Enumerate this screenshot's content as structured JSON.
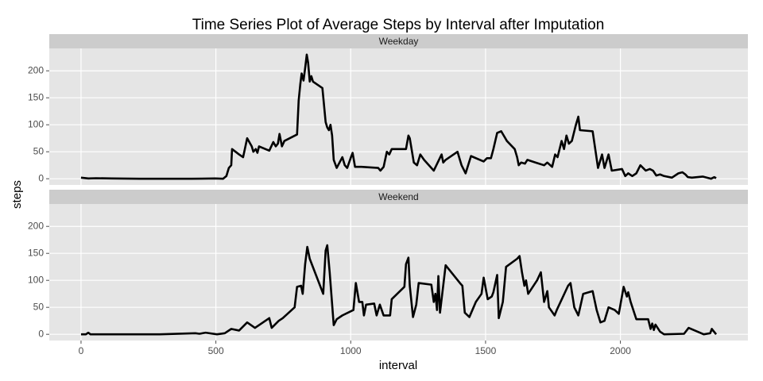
{
  "title": "Time Series Plot of Average Steps by Interval after Imputation",
  "x_label": "interval",
  "y_label": "steps",
  "chart_data": [
    {
      "type": "line",
      "strip": "Weekday",
      "grid": true,
      "xlim": [
        -117.75,
        2472.75
      ],
      "ylim": [
        -11.5,
        241.5
      ],
      "xticks": [
        0,
        500,
        1000,
        1500,
        2000
      ],
      "yticks": [
        0,
        50,
        100,
        150,
        200
      ],
      "x": [
        0,
        27,
        56,
        115,
        218,
        409,
        498,
        527,
        539,
        548,
        557,
        560,
        586,
        601,
        616,
        633,
        639,
        648,
        654,
        660,
        698,
        713,
        722,
        730,
        736,
        745,
        754,
        801,
        807,
        813,
        818,
        825,
        831,
        837,
        842,
        848,
        854,
        860,
        895,
        907,
        913,
        919,
        925,
        931,
        937,
        948,
        969,
        978,
        987,
        1001,
        1007,
        1016,
        1040,
        1102,
        1110,
        1122,
        1134,
        1143,
        1152,
        1205,
        1214,
        1219,
        1234,
        1246,
        1258,
        1272,
        1308,
        1337,
        1343,
        1352,
        1396,
        1411,
        1426,
        1446,
        1493,
        1505,
        1520,
        1529,
        1543,
        1558,
        1579,
        1608,
        1617,
        1623,
        1632,
        1646,
        1655,
        1685,
        1717,
        1729,
        1747,
        1758,
        1767,
        1782,
        1791,
        1800,
        1809,
        1820,
        1835,
        1844,
        1850,
        1897,
        1917,
        1932,
        1941,
        1956,
        1968,
        2006,
        2018,
        2029,
        2044,
        2059,
        2074,
        2094,
        2109,
        2121,
        2133,
        2147,
        2162,
        2191,
        2215,
        2230,
        2241,
        2250,
        2265,
        2306,
        2336,
        2348,
        2355
      ],
      "series": [
        {
          "color": "#000000",
          "values": [
            2,
            0.5,
            1,
            0.5,
            0,
            0,
            0.5,
            0,
            5,
            20,
            25,
            55,
            45,
            40,
            75,
            60,
            50,
            55,
            48,
            60,
            52,
            68,
            60,
            65,
            83,
            60,
            70,
            82,
            145,
            175,
            195,
            182,
            205,
            230,
            215,
            180,
            190,
            180,
            168,
            105,
            95,
            90,
            100,
            80,
            35,
            20,
            40,
            25,
            20,
            40,
            48,
            22,
            22,
            20,
            15,
            22,
            50,
            45,
            55,
            55,
            80,
            75,
            30,
            25,
            45,
            35,
            15,
            45,
            30,
            35,
            50,
            25,
            10,
            42,
            32,
            38,
            38,
            55,
            85,
            88,
            70,
            55,
            40,
            25,
            30,
            28,
            35,
            30,
            25,
            30,
            22,
            45,
            40,
            70,
            55,
            80,
            65,
            70,
            100,
            115,
            90,
            88,
            20,
            45,
            20,
            45,
            15,
            18,
            5,
            10,
            5,
            10,
            25,
            15,
            18,
            15,
            6,
            8,
            5,
            2,
            10,
            12,
            8,
            3,
            2,
            4,
            0,
            3,
            1
          ]
        }
      ]
    },
    {
      "type": "line",
      "strip": "Weekend",
      "grid": true,
      "xlim": [
        -117.75,
        2472.75
      ],
      "ylim": [
        -11.5,
        241.5
      ],
      "xticks": [
        0,
        500,
        1000,
        1500,
        2000
      ],
      "yticks": [
        0,
        50,
        100,
        150,
        200
      ],
      "x": [
        0,
        18,
        27,
        35,
        115,
        292,
        424,
        439,
        462,
        504,
        533,
        557,
        586,
        616,
        645,
        698,
        707,
        733,
        748,
        792,
        801,
        816,
        822,
        831,
        839,
        848,
        898,
        907,
        913,
        922,
        937,
        948,
        969,
        1010,
        1019,
        1031,
        1043,
        1049,
        1057,
        1087,
        1096,
        1108,
        1122,
        1146,
        1152,
        1199,
        1205,
        1214,
        1219,
        1231,
        1243,
        1252,
        1299,
        1308,
        1314,
        1320,
        1325,
        1331,
        1352,
        1405,
        1414,
        1423,
        1440,
        1464,
        1485,
        1493,
        1508,
        1523,
        1529,
        1543,
        1549,
        1564,
        1576,
        1617,
        1626,
        1635,
        1644,
        1650,
        1658,
        1691,
        1705,
        1717,
        1729,
        1735,
        1756,
        1764,
        1806,
        1815,
        1829,
        1844,
        1862,
        1897,
        1912,
        1926,
        1941,
        1956,
        1979,
        1994,
        2012,
        2024,
        2029,
        2038,
        2059,
        2103,
        2112,
        2118,
        2124,
        2130,
        2147,
        2162,
        2236,
        2253,
        2309,
        2333,
        2339,
        2355
      ],
      "series": [
        {
          "color": "#000000",
          "values": [
            0,
            0,
            3,
            0,
            0,
            0,
            2,
            1,
            3,
            0,
            2,
            10,
            7,
            22,
            12,
            30,
            12,
            25,
            30,
            50,
            88,
            90,
            75,
            130,
            162,
            140,
            75,
            155,
            165,
            115,
            17,
            28,
            35,
            45,
            95,
            60,
            60,
            35,
            55,
            57,
            35,
            55,
            35,
            35,
            65,
            88,
            130,
            142,
            90,
            32,
            55,
            95,
            92,
            60,
            75,
            45,
            108,
            40,
            128,
            95,
            90,
            40,
            32,
            60,
            75,
            105,
            65,
            70,
            78,
            110,
            30,
            60,
            125,
            140,
            145,
            115,
            90,
            100,
            75,
            100,
            115,
            60,
            80,
            50,
            35,
            45,
            90,
            95,
            50,
            35,
            75,
            80,
            45,
            22,
            25,
            50,
            45,
            38,
            88,
            70,
            78,
            60,
            28,
            28,
            10,
            20,
            8,
            18,
            5,
            0,
            1,
            12,
            0,
            2,
            10,
            0
          ]
        }
      ]
    }
  ]
}
